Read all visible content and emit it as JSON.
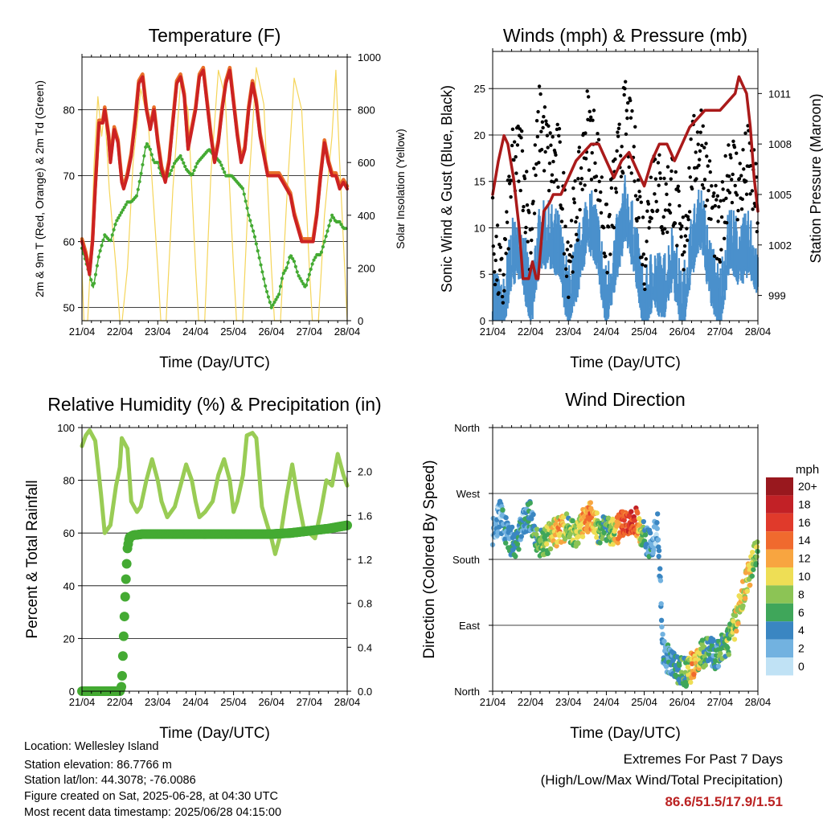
{
  "colors": {
    "temp2m": "#cc2222",
    "temp9m": "#e8702a",
    "dewpoint": "#44aa33",
    "solar": "#f5d55a",
    "wind": "#4a90cc",
    "gust": "#000000",
    "pressure": "#aa1a1a",
    "rh": "#99cc55",
    "precip": "#44aa33",
    "highlight": "#bb2222"
  },
  "x_tick_labels": [
    "21/04",
    "22/04",
    "23/04",
    "24/04",
    "25/04",
    "26/04",
    "27/04",
    "28/04"
  ],
  "chart_data": [
    {
      "type": "line",
      "title": "Temperature (F)",
      "xlabel": "Time (Day/UTC)",
      "ylabel": "2m & 9m T (Red, Orange) & 2m Td (Green)",
      "y2label": "Solar Insolation (Yellow)",
      "xlim": [
        0,
        7
      ],
      "ylim": [
        48,
        88
      ],
      "y2lim": [
        0,
        1000
      ],
      "yticks": [
        50,
        60,
        70,
        80
      ],
      "y2ticks": [
        0,
        200,
        400,
        600,
        800,
        1000
      ],
      "series": [
        {
          "kind": "temp",
          "x": [
            0,
            0.1,
            0.2,
            0.28,
            0.35,
            0.45,
            0.55,
            0.6,
            0.7,
            0.75,
            0.85,
            0.95,
            1.0,
            1.05,
            1.1,
            1.2,
            1.3,
            1.4,
            1.5,
            1.6,
            1.7,
            1.8,
            1.9,
            2.0,
            2.1,
            2.2,
            2.3,
            2.4,
            2.5,
            2.6,
            2.7,
            2.8,
            2.9,
            3.0,
            3.1,
            3.2,
            3.3,
            3.4,
            3.5,
            3.6,
            3.7,
            3.8,
            3.9,
            4.0,
            4.1,
            4.2,
            4.3,
            4.4,
            4.5,
            4.6,
            4.7,
            4.8,
            4.9,
            5.0,
            5.1,
            5.2,
            5.3,
            5.4,
            5.5,
            5.6,
            5.7,
            5.8,
            5.9,
            6.0,
            6.1,
            6.2,
            6.3,
            6.4,
            6.5,
            6.6,
            6.7,
            6.8,
            6.9,
            7.0
          ],
          "y": [
            60,
            58,
            55,
            60,
            68,
            78,
            78,
            80,
            76,
            72,
            77,
            75,
            72,
            69,
            68,
            70,
            73,
            78,
            84,
            85,
            80,
            77,
            80,
            75,
            71,
            69,
            72,
            78,
            84,
            85,
            82,
            74,
            77,
            80,
            85,
            86,
            81,
            76,
            72,
            75,
            80,
            84,
            86,
            81,
            76,
            72,
            74,
            80,
            84,
            81,
            76,
            73,
            70,
            70,
            70,
            70,
            69,
            68,
            67,
            64,
            62,
            60,
            60,
            60,
            60,
            64,
            70,
            75,
            72,
            70,
            70,
            68,
            69,
            68
          ]
        },
        {
          "kind": "dew",
          "x": [
            0,
            0.15,
            0.3,
            0.45,
            0.6,
            0.75,
            0.9,
            1.0,
            1.1,
            1.2,
            1.3,
            1.45,
            1.55,
            1.7,
            1.8,
            1.9,
            2.0,
            2.1,
            2.2,
            2.3,
            2.45,
            2.6,
            2.75,
            2.9,
            3.05,
            3.2,
            3.35,
            3.5,
            3.65,
            3.8,
            3.95,
            4.1,
            4.25,
            4.4,
            4.55,
            4.7,
            4.85,
            5.0,
            5.1,
            5.2,
            5.3,
            5.4,
            5.5,
            5.6,
            5.7,
            5.8,
            5.9,
            6.0,
            6.1,
            6.2,
            6.3,
            6.4,
            6.5,
            6.6,
            6.7,
            6.8,
            6.9,
            7.0
          ],
          "y": [
            59,
            56,
            53,
            58,
            61,
            60,
            63,
            64,
            65,
            66,
            66,
            67,
            70,
            75,
            74,
            72,
            72,
            70,
            70,
            70,
            72,
            73,
            71,
            70,
            72,
            73,
            74,
            73,
            72,
            70,
            70,
            69,
            68,
            64,
            61,
            57,
            53,
            50,
            51,
            52,
            55,
            56,
            58,
            57,
            55,
            54,
            53,
            55,
            57,
            58,
            58,
            60,
            62,
            64,
            63,
            63,
            62,
            62
          ]
        },
        {
          "kind": "solar",
          "x": [
            0,
            0.05,
            0.15,
            0.25,
            0.32,
            0.42,
            0.52,
            0.6,
            0.72,
            0.9,
            1.0,
            1.06,
            1.2,
            1.35,
            1.55,
            1.75,
            2.0,
            2.08,
            2.22,
            2.4,
            2.6,
            2.8,
            3.0,
            3.08,
            3.24,
            3.4,
            3.6,
            3.78,
            4.0,
            4.08,
            4.24,
            4.4,
            4.6,
            4.8,
            5.0,
            5.08,
            5.24,
            5.4,
            5.6,
            5.8,
            6.0,
            6.08,
            6.24,
            6.4,
            6.6,
            6.7,
            6.8,
            6.9,
            7.0
          ],
          "y": [
            200,
            0,
            0,
            300,
            600,
            850,
            700,
            800,
            500,
            200,
            0,
            0,
            200,
            600,
            880,
            750,
            200,
            0,
            0,
            500,
            900,
            800,
            200,
            0,
            0,
            550,
            950,
            850,
            200,
            0,
            0,
            500,
            960,
            820,
            200,
            0,
            0,
            450,
            920,
            800,
            200,
            0,
            0,
            400,
            700,
            950,
            600,
            300,
            0
          ]
        }
      ]
    },
    {
      "type": "line",
      "title": "Winds (mph) & Pressure (mb)",
      "xlabel": "Time (Day/UTC)",
      "ylabel": "Sonic Wind & Gust (Blue, Black)",
      "y2label": "Station Pressure (Maroon)",
      "xlim": [
        0,
        7
      ],
      "ylim": [
        0,
        29
      ],
      "y2lim": [
        997.5,
        1013.5
      ],
      "yticks": [
        0,
        5,
        10,
        15,
        20,
        25
      ],
      "y2ticks": [
        999,
        1002,
        1005,
        1008,
        1011
      ],
      "series": [
        {
          "kind": "pressure",
          "x": [
            0,
            0.15,
            0.3,
            0.4,
            0.55,
            0.7,
            0.8,
            0.95,
            1.05,
            1.15,
            1.2,
            1.35,
            1.5,
            1.6,
            1.8,
            2.0,
            2.2,
            2.4,
            2.6,
            2.8,
            3.0,
            3.2,
            3.4,
            3.6,
            3.8,
            4.0,
            4.2,
            4.4,
            4.6,
            4.8,
            5.0,
            5.2,
            5.4,
            5.6,
            5.8,
            6.0,
            6.2,
            6.4,
            6.5,
            6.6,
            6.7,
            6.8,
            6.9,
            7.0
          ],
          "y": [
            1005,
            1007,
            1008.5,
            1008,
            1006,
            1003,
            1000,
            1000,
            1001,
            1000,
            1000,
            1004,
            1004.5,
            1005,
            1005,
            1006,
            1007,
            1007.5,
            1008,
            1008,
            1007,
            1006,
            1007,
            1007.5,
            1006.5,
            1005.5,
            1007,
            1008,
            1008,
            1007,
            1008,
            1009,
            1009.5,
            1010,
            1010,
            1010,
            1010.5,
            1011,
            1012,
            1011.5,
            1011,
            1009,
            1006,
            1004
          ]
        },
        {
          "kind": "gust",
          "x": [
            0,
            0.25,
            0.5,
            0.75,
            1.0,
            1.25,
            1.5,
            1.75,
            2.0,
            2.25,
            2.5,
            2.75,
            3.0,
            3.25,
            3.5,
            3.75,
            4.0,
            4.25,
            4.5,
            4.75,
            5.0,
            5.25,
            5.5,
            5.75,
            6.0,
            6.25,
            6.5,
            6.75,
            7.0
          ],
          "y": [
            9,
            3,
            16,
            18,
            9,
            22,
            17,
            17,
            7,
            13,
            21,
            18,
            8,
            15,
            22,
            17,
            7,
            17,
            12,
            15,
            7,
            17,
            20,
            13,
            8,
            18,
            14,
            17,
            12
          ]
        },
        {
          "kind": "wind",
          "x": [
            0,
            0.25,
            0.5,
            0.75,
            1.0,
            1.25,
            1.5,
            1.75,
            2.0,
            2.25,
            2.5,
            2.75,
            3.0,
            3.25,
            3.5,
            3.75,
            4.0,
            4.25,
            4.5,
            4.75,
            5.0,
            5.25,
            5.5,
            5.75,
            6.0,
            6.25,
            6.5,
            6.75,
            7.0
          ],
          "y": [
            4,
            1,
            8,
            9,
            3,
            10,
            10,
            9,
            3,
            7,
            12,
            10,
            3,
            8,
            13,
            9,
            2,
            6,
            4,
            8,
            2,
            9,
            12,
            6,
            3,
            10,
            8,
            9,
            7
          ]
        }
      ]
    },
    {
      "type": "line",
      "title": "Relative Humidity (%) & Precipitation (in)",
      "xlabel": "Time (Day/UTC)",
      "ylabel": "Percent & Total Rainfall",
      "xlim": [
        0,
        7
      ],
      "ylim": [
        0,
        100
      ],
      "y2lim": [
        0,
        2.4
      ],
      "yticks": [
        0,
        20,
        40,
        60,
        80,
        100
      ],
      "y2ticks": [
        0.0,
        0.4,
        0.8,
        1.2,
        1.6,
        2.0
      ],
      "series": [
        {
          "kind": "rh",
          "x": [
            0,
            0.1,
            0.2,
            0.35,
            0.5,
            0.6,
            0.75,
            0.9,
            1.0,
            1.05,
            1.2,
            1.3,
            1.45,
            1.55,
            1.7,
            1.85,
            2.0,
            2.1,
            2.25,
            2.45,
            2.6,
            2.75,
            2.9,
            3.0,
            3.1,
            3.25,
            3.45,
            3.6,
            3.75,
            3.9,
            4.0,
            4.1,
            4.25,
            4.35,
            4.5,
            4.6,
            4.75,
            4.85,
            5.0,
            5.1,
            5.25,
            5.4,
            5.55,
            5.7,
            5.85,
            6.0,
            6.15,
            6.3,
            6.45,
            6.6,
            6.75,
            6.9,
            7.0
          ],
          "y": [
            93,
            97,
            99,
            95,
            75,
            60,
            63,
            78,
            85,
            96,
            92,
            72,
            68,
            70,
            80,
            88,
            80,
            72,
            66,
            70,
            78,
            86,
            80,
            72,
            66,
            68,
            72,
            82,
            88,
            80,
            68,
            72,
            82,
            97,
            98,
            96,
            70,
            65,
            58,
            52,
            60,
            74,
            86,
            73,
            62,
            60,
            58,
            68,
            80,
            78,
            90,
            82,
            78
          ]
        },
        {
          "kind": "precip",
          "x": [
            0,
            0.5,
            1.0,
            1.05,
            1.1,
            1.15,
            1.2,
            1.25,
            1.35,
            1.6,
            2.0,
            3.0,
            4.0,
            5.0,
            5.5,
            6.0,
            6.5,
            7.0
          ],
          "y": [
            0,
            0,
            0,
            0.05,
            0.5,
            0.95,
            1.3,
            1.4,
            1.42,
            1.43,
            1.43,
            1.43,
            1.43,
            1.43,
            1.44,
            1.46,
            1.48,
            1.51
          ]
        }
      ]
    },
    {
      "type": "scatter",
      "title": "Wind Direction",
      "xlabel": "Time (Day/UTC)",
      "ylabel": "Direction (Colored By Speed)",
      "xlim": [
        0,
        7
      ],
      "ylim": [
        0,
        360
      ],
      "ytick_labels": [
        "North",
        "East",
        "South",
        "West",
        "North"
      ],
      "ytick_values": [
        0,
        90,
        180,
        270,
        360
      ],
      "colorbar": {
        "title": "mph",
        "labels": [
          "20+",
          "18",
          "16",
          "14",
          "12",
          "10",
          "8",
          "6",
          "4",
          "2",
          "0"
        ],
        "colors": [
          "#99181e",
          "#c22126",
          "#e03a2b",
          "#f06a2e",
          "#f8a540",
          "#eede55",
          "#8cc455",
          "#3fa65a",
          "#3a86c2",
          "#72b2e0",
          "#c0e2f5"
        ]
      },
      "series": [
        {
          "kind": "dir",
          "x": [
            0,
            0.2,
            0.4,
            0.6,
            0.8,
            1.0,
            1.2,
            1.4,
            1.6,
            1.8,
            2.0,
            2.2,
            2.4,
            2.6,
            2.8,
            3.0,
            3.2,
            3.4,
            3.6,
            3.8,
            4.0,
            4.2,
            4.35,
            4.5,
            4.7,
            4.9,
            5.1,
            5.3,
            5.5,
            5.7,
            5.9,
            6.1,
            6.3,
            6.5,
            6.7,
            6.9,
            7.0
          ],
          "y": [
            220,
            240,
            210,
            200,
            230,
            240,
            200,
            205,
            215,
            220,
            225,
            210,
            230,
            240,
            220,
            225,
            215,
            225,
            235,
            230,
            210,
            200,
            230,
            50,
            40,
            30,
            25,
            35,
            50,
            55,
            50,
            60,
            75,
            110,
            150,
            180,
            190
          ],
          "speed": [
            3,
            2,
            4,
            5,
            3,
            4,
            6,
            8,
            10,
            12,
            7,
            8,
            11,
            13,
            7,
            6,
            9,
            14,
            16,
            15,
            5,
            3,
            2,
            3,
            4,
            5,
            6,
            12,
            8,
            5,
            5,
            6,
            8,
            10,
            10,
            8,
            7
          ]
        }
      ]
    }
  ],
  "info": {
    "location": "Location: Wellesley Island",
    "elevation": "Station elevation: 86.7766 m",
    "latlon": "Station lat/lon: 44.3078; -76.0086",
    "created": "Figure created on Sat, 2025-06-28, at 04:30 UTC",
    "latest": "Most recent data timestamp: 2025/06/28 04:15:00"
  },
  "extremes": {
    "title": "Extremes For Past 7 Days",
    "subtitle": "(High/Low/Max Wind/Total Precipitation)",
    "values": "86.6/51.5/17.9/1.51"
  }
}
